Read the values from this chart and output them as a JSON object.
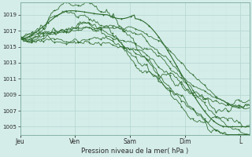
{
  "background_color": "#d4ede9",
  "plot_bg_color": "#d4ede9",
  "grid_major_color": "#b8d8d4",
  "grid_minor_color": "#cce8e4",
  "line_color": "#2d6b2d",
  "xlabel": "Pression niveau de la mer( hPa )",
  "ylim": [
    1004.0,
    1020.5
  ],
  "yticks": [
    1005,
    1007,
    1009,
    1011,
    1013,
    1015,
    1017,
    1019
  ],
  "xtick_labels": [
    "Jeu",
    "Ven",
    "Sam",
    "Dim",
    "L"
  ],
  "xtick_positions": [
    0,
    24,
    48,
    72,
    96
  ],
  "total_hours": 100
}
